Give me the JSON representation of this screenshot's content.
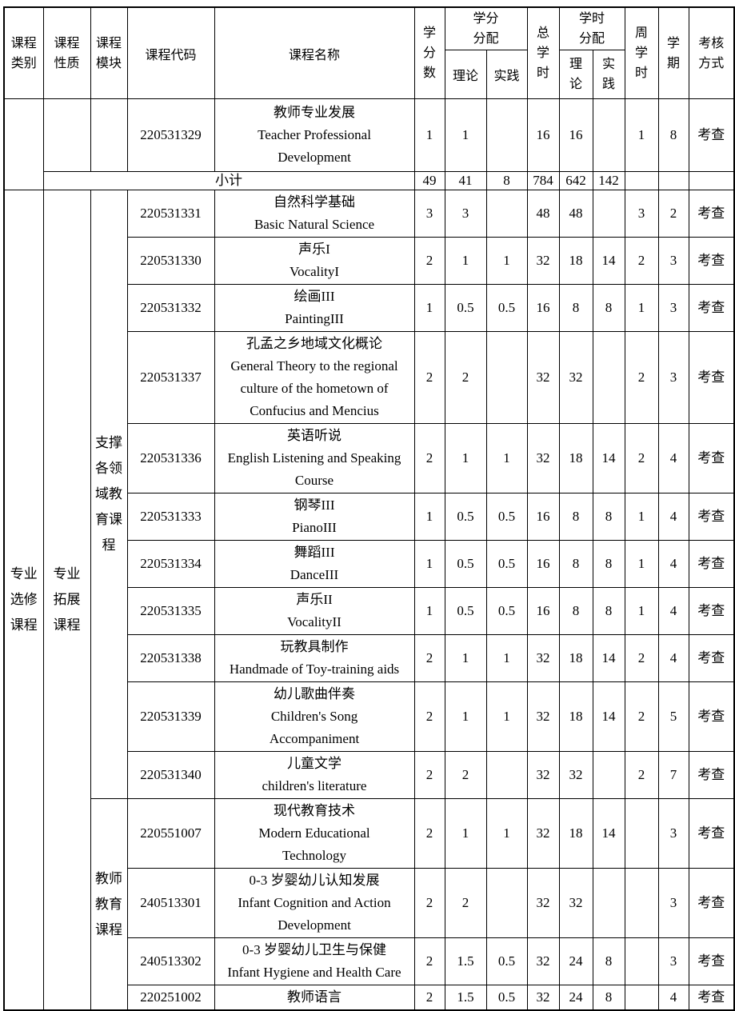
{
  "table": {
    "header": {
      "category": "课程类别",
      "nature": "课程性质",
      "module": "课程模块",
      "code": "课程代码",
      "name": "课程名称",
      "credits": "学分数",
      "credit_dist": "学分分配",
      "theory": "理论",
      "practice": "实践",
      "total_hours": "总学时",
      "hour_dist": "学时分配",
      "weekly_hours": "周学时",
      "semester": "学期",
      "assessment": "考核方式"
    },
    "carryover_course": {
      "code": "220531329",
      "name_zh": "教师专业发展",
      "name_en": "Teacher Professional\nDevelopment",
      "credits": "1",
      "credit_theory": "1",
      "credit_practice": "",
      "total_hours": "16",
      "hours_theory": "16",
      "hours_practice": "",
      "weekly": "1",
      "semester": "8",
      "assessment": "考查"
    },
    "subtotal": {
      "label": "小计",
      "credits": "49",
      "credit_theory": "41",
      "credit_practice": "8",
      "total_hours": "784",
      "hours_theory": "642",
      "hours_practice": "142",
      "weekly": "",
      "semester": "",
      "assessment": ""
    },
    "category_label": "专业选修课程",
    "nature_label": "专业拓展课程",
    "modules": [
      {
        "label": "支撑各领域教育课程",
        "courses": [
          {
            "code": "220531331",
            "name_zh": "自然科学基础",
            "name_en": "Basic Natural Science",
            "credits": "3",
            "credit_theory": "3",
            "credit_practice": "",
            "total_hours": "48",
            "hours_theory": "48",
            "hours_practice": "",
            "weekly": "3",
            "semester": "2",
            "assessment": "考查"
          },
          {
            "code": "220531330",
            "name_zh": "声乐I",
            "name_en": "VocalityI",
            "credits": "2",
            "credit_theory": "1",
            "credit_practice": "1",
            "total_hours": "32",
            "hours_theory": "18",
            "hours_practice": "14",
            "weekly": "2",
            "semester": "3",
            "assessment": "考查"
          },
          {
            "code": "220531332",
            "name_zh": "绘画III",
            "name_en": "PaintingIII",
            "credits": "1",
            "credit_theory": "0.5",
            "credit_practice": "0.5",
            "total_hours": "16",
            "hours_theory": "8",
            "hours_practice": "8",
            "weekly": "1",
            "semester": "3",
            "assessment": "考查"
          },
          {
            "code": "220531337",
            "name_zh": "孔孟之乡地域文化概论",
            "name_en": "General Theory to the regional\nculture of the hometown of\nConfucius and Mencius",
            "credits": "2",
            "credit_theory": "2",
            "credit_practice": "",
            "total_hours": "32",
            "hours_theory": "32",
            "hours_practice": "",
            "weekly": "2",
            "semester": "3",
            "assessment": "考查"
          },
          {
            "code": "220531336",
            "name_zh": "英语听说",
            "name_en": "English Listening and Speaking\nCourse",
            "credits": "2",
            "credit_theory": "1",
            "credit_practice": "1",
            "total_hours": "32",
            "hours_theory": "18",
            "hours_practice": "14",
            "weekly": "2",
            "semester": "4",
            "assessment": "考查"
          },
          {
            "code": "220531333",
            "name_zh": "钢琴III",
            "name_en": "PianoIII",
            "credits": "1",
            "credit_theory": "0.5",
            "credit_practice": "0.5",
            "total_hours": "16",
            "hours_theory": "8",
            "hours_practice": "8",
            "weekly": "1",
            "semester": "4",
            "assessment": "考查"
          },
          {
            "code": "220531334",
            "name_zh": "舞蹈III",
            "name_en": "DanceIII",
            "credits": "1",
            "credit_theory": "0.5",
            "credit_practice": "0.5",
            "total_hours": "16",
            "hours_theory": "8",
            "hours_practice": "8",
            "weekly": "1",
            "semester": "4",
            "assessment": "考查"
          },
          {
            "code": "220531335",
            "name_zh": "声乐II",
            "name_en": "VocalityII",
            "credits": "1",
            "credit_theory": "0.5",
            "credit_practice": "0.5",
            "total_hours": "16",
            "hours_theory": "8",
            "hours_practice": "8",
            "weekly": "1",
            "semester": "4",
            "assessment": "考查"
          },
          {
            "code": "220531338",
            "name_zh": "玩教具制作",
            "name_en": "Handmade of Toy-training aids",
            "credits": "2",
            "credit_theory": "1",
            "credit_practice": "1",
            "total_hours": "32",
            "hours_theory": "18",
            "hours_practice": "14",
            "weekly": "2",
            "semester": "4",
            "assessment": "考查"
          },
          {
            "code": "220531339",
            "name_zh": "幼儿歌曲伴奏",
            "name_en": "Children's Song\nAccompaniment",
            "credits": "2",
            "credit_theory": "1",
            "credit_practice": "1",
            "total_hours": "32",
            "hours_theory": "18",
            "hours_practice": "14",
            "weekly": "2",
            "semester": "5",
            "assessment": "考查"
          },
          {
            "code": "220531340",
            "name_zh": "儿童文学",
            "name_en": "children's literature",
            "credits": "2",
            "credit_theory": "2",
            "credit_practice": "",
            "total_hours": "32",
            "hours_theory": "32",
            "hours_practice": "",
            "weekly": "2",
            "semester": "7",
            "assessment": "考查"
          }
        ]
      },
      {
        "label": "教师教育课程",
        "courses": [
          {
            "code": "220551007",
            "name_zh": "现代教育技术",
            "name_en": "Modern Educational\nTechnology",
            "credits": "2",
            "credit_theory": "1",
            "credit_practice": "1",
            "total_hours": "32",
            "hours_theory": "18",
            "hours_practice": "14",
            "weekly": "",
            "semester": "3",
            "assessment": "考查"
          },
          {
            "code": "240513301",
            "name_zh": "0-3 岁婴幼儿认知发展",
            "name_en": "Infant Cognition and Action\nDevelopment",
            "credits": "2",
            "credit_theory": "2",
            "credit_practice": "",
            "total_hours": "32",
            "hours_theory": "32",
            "hours_practice": "",
            "weekly": "",
            "semester": "3",
            "assessment": "考查"
          },
          {
            "code": "240513302",
            "name_zh": "0-3 岁婴幼儿卫生与保健",
            "name_en": "Infant Hygiene and Health Care",
            "credits": "2",
            "credit_theory": "1.5",
            "credit_practice": "0.5",
            "total_hours": "32",
            "hours_theory": "24",
            "hours_practice": "8",
            "weekly": "",
            "semester": "3",
            "assessment": "考查"
          },
          {
            "code": "220251002",
            "name_zh": "教师语言",
            "name_en": "",
            "credits": "2",
            "credit_theory": "1.5",
            "credit_practice": "0.5",
            "total_hours": "32",
            "hours_theory": "24",
            "hours_practice": "8",
            "weekly": "",
            "semester": "4",
            "assessment": "考查"
          }
        ]
      }
    ]
  }
}
